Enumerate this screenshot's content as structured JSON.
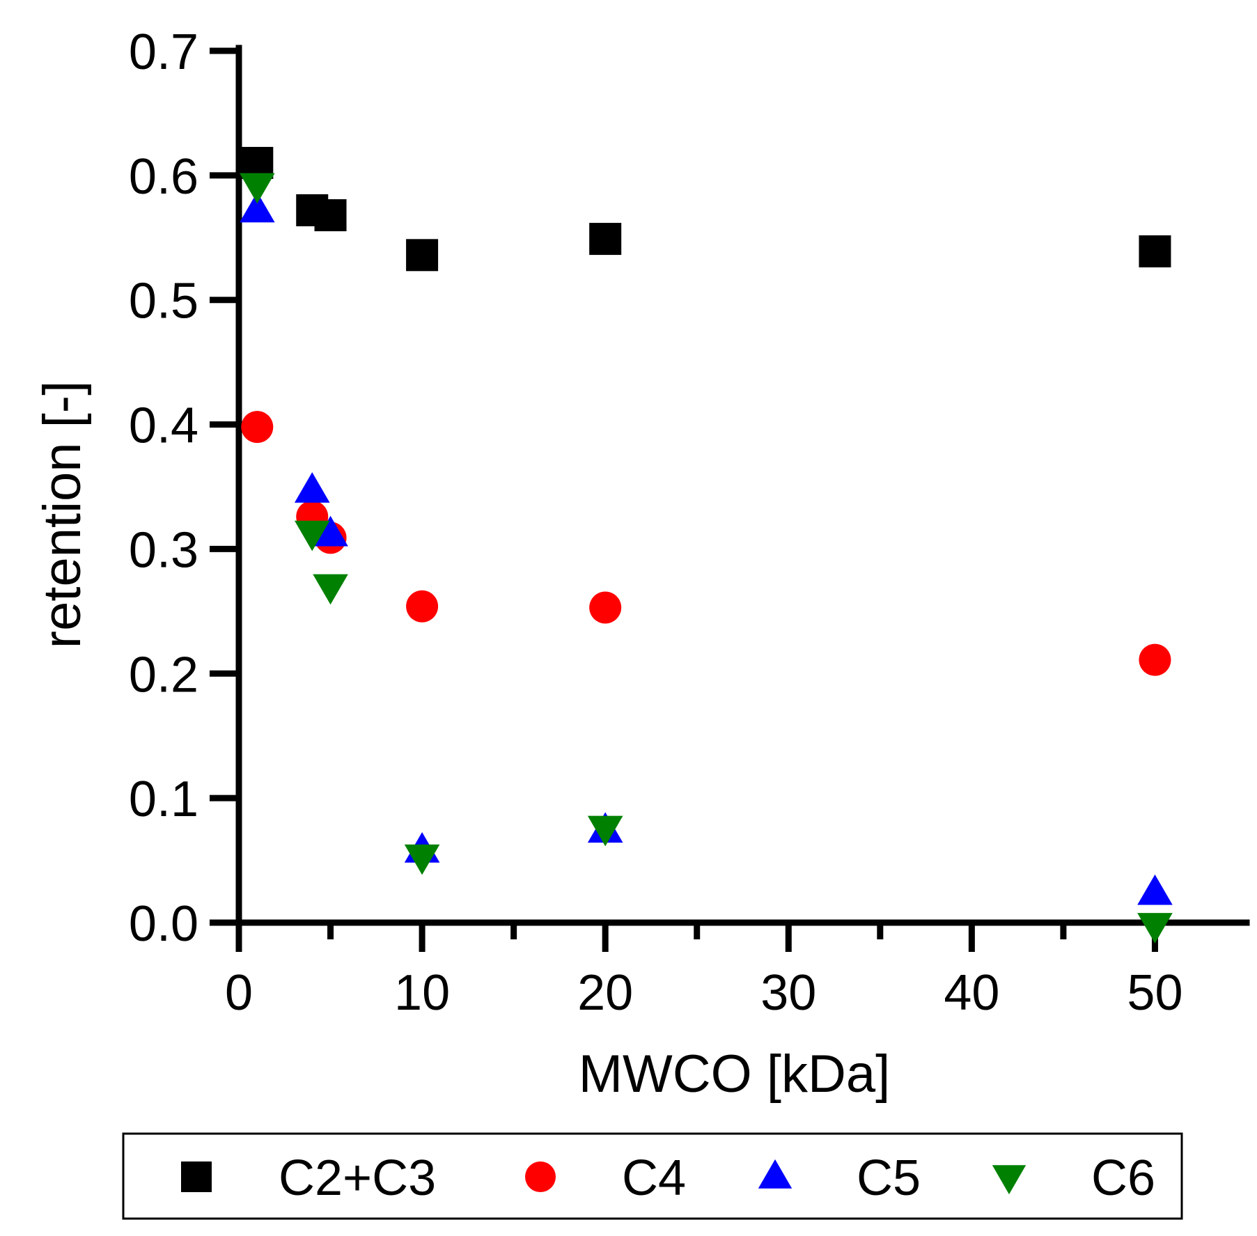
{
  "chart_data": {
    "type": "scatter",
    "title": "",
    "xlabel": "MWCO [kDa]",
    "ylabel": "retention [-]",
    "xlim": [
      0,
      55
    ],
    "ylim": [
      0,
      0.7
    ],
    "x_ticks": [
      0,
      10,
      20,
      30,
      40,
      50
    ],
    "x_tick_labels": [
      "0",
      "10",
      "20",
      "30",
      "40",
      "50"
    ],
    "x_minor_ticks": [
      5,
      15,
      25,
      35,
      45
    ],
    "y_ticks": [
      0.0,
      0.1,
      0.2,
      0.3,
      0.4,
      0.5,
      0.6,
      0.7
    ],
    "y_tick_labels": [
      "0.0",
      "0.1",
      "0.2",
      "0.3",
      "0.4",
      "0.5",
      "0.6",
      "0.7"
    ],
    "grid": false,
    "legend_position": "bottom",
    "series": [
      {
        "name": "C2+C3",
        "marker": "square",
        "color": "#000000",
        "points": [
          [
            1,
            0.61
          ],
          [
            4,
            0.572
          ],
          [
            5,
            0.568
          ],
          [
            10,
            0.536
          ],
          [
            20,
            0.549
          ],
          [
            50,
            0.539
          ]
        ]
      },
      {
        "name": "C4",
        "marker": "circle",
        "color": "#ff0000",
        "points": [
          [
            1,
            0.398
          ],
          [
            4,
            0.326
          ],
          [
            5,
            0.309
          ],
          [
            10,
            0.254
          ],
          [
            20,
            0.253
          ],
          [
            50,
            0.211
          ]
        ]
      },
      {
        "name": "C5",
        "marker": "triangle-up",
        "color": "#0000ff",
        "points": [
          [
            1,
            0.572
          ],
          [
            4,
            0.347
          ],
          [
            5,
            0.312
          ],
          [
            10,
            0.058
          ],
          [
            20,
            0.074
          ],
          [
            50,
            0.024
          ]
        ]
      },
      {
        "name": "C6",
        "marker": "triangle-down",
        "color": "#008000",
        "points": [
          [
            1,
            0.592
          ],
          [
            4,
            0.313
          ],
          [
            5,
            0.27
          ],
          [
            10,
            0.053
          ],
          [
            20,
            0.076
          ],
          [
            50,
            -0.002
          ]
        ]
      }
    ]
  }
}
